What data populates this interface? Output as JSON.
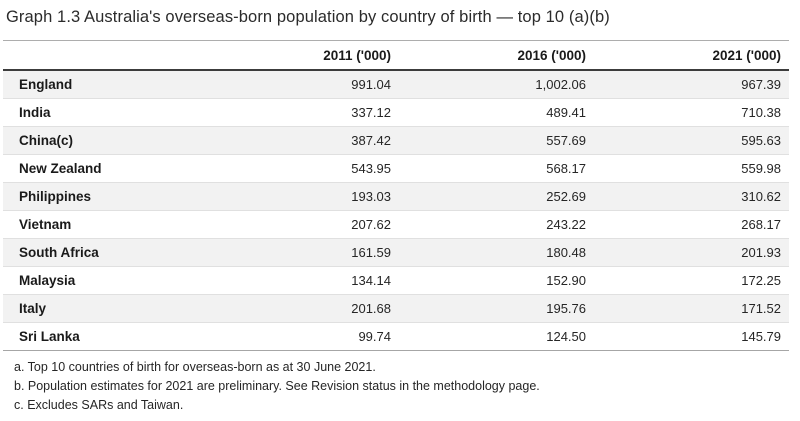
{
  "title": "Graph 1.3 Australia's overseas-born population by country of birth — top 10 (a)(b)",
  "table": {
    "columns": [
      "2011 ('000)",
      "2016 ('000)",
      "2021 ('000)"
    ],
    "rows": [
      {
        "country": "England",
        "values": [
          "991.04",
          "1,002.06",
          "967.39"
        ]
      },
      {
        "country": "India",
        "values": [
          "337.12",
          "489.41",
          "710.38"
        ]
      },
      {
        "country": "China(c)",
        "values": [
          "387.42",
          "557.69",
          "595.63"
        ]
      },
      {
        "country": "New Zealand",
        "values": [
          "543.95",
          "568.17",
          "559.98"
        ]
      },
      {
        "country": "Philippines",
        "values": [
          "193.03",
          "252.69",
          "310.62"
        ]
      },
      {
        "country": "Vietnam",
        "values": [
          "207.62",
          "243.22",
          "268.17"
        ]
      },
      {
        "country": "South Africa",
        "values": [
          "161.59",
          "180.48",
          "201.93"
        ]
      },
      {
        "country": "Malaysia",
        "values": [
          "134.14",
          "152.90",
          "172.25"
        ]
      },
      {
        "country": "Italy",
        "values": [
          "201.68",
          "195.76",
          "171.52"
        ]
      },
      {
        "country": "Sri Lanka",
        "values": [
          "99.74",
          "124.50",
          "145.79"
        ]
      }
    ]
  },
  "footnotes": [
    "a. Top 10 countries of birth for overseas-born as at 30 June 2021.",
    "b. Population estimates for 2021 are preliminary. See Revision status in the methodology page.",
    "c. Excludes SARs and Taiwan."
  ],
  "colors": {
    "row_stripe": "#f2f2f2",
    "header_rule_dark": "#3c3c3c",
    "rule_light": "#adadad",
    "row_separator": "#e0e0e0",
    "text": "#262626"
  },
  "chart_data": {
    "type": "table",
    "title": "Graph 1.3 Australia's overseas-born population by country of birth — top 10 (a)(b)",
    "categories": [
      "England",
      "India",
      "China(c)",
      "New Zealand",
      "Philippines",
      "Vietnam",
      "South Africa",
      "Malaysia",
      "Italy",
      "Sri Lanka"
    ],
    "series": [
      {
        "name": "2011 ('000)",
        "values": [
          991.04,
          337.12,
          387.42,
          543.95,
          193.03,
          207.62,
          161.59,
          134.14,
          201.68,
          99.74
        ]
      },
      {
        "name": "2016 ('000)",
        "values": [
          1002.06,
          489.41,
          557.69,
          568.17,
          252.69,
          243.22,
          180.48,
          152.9,
          195.76,
          124.5
        ]
      },
      {
        "name": "2021 ('000)",
        "values": [
          967.39,
          710.38,
          595.63,
          559.98,
          310.62,
          268.17,
          201.93,
          172.25,
          171.52,
          145.79
        ]
      }
    ],
    "footnotes": [
      "a. Top 10 countries of birth for overseas-born as at 30 June 2021.",
      "b. Population estimates for 2021 are preliminary. See Revision status in the methodology page.",
      "c. Excludes SARs and Taiwan."
    ]
  }
}
